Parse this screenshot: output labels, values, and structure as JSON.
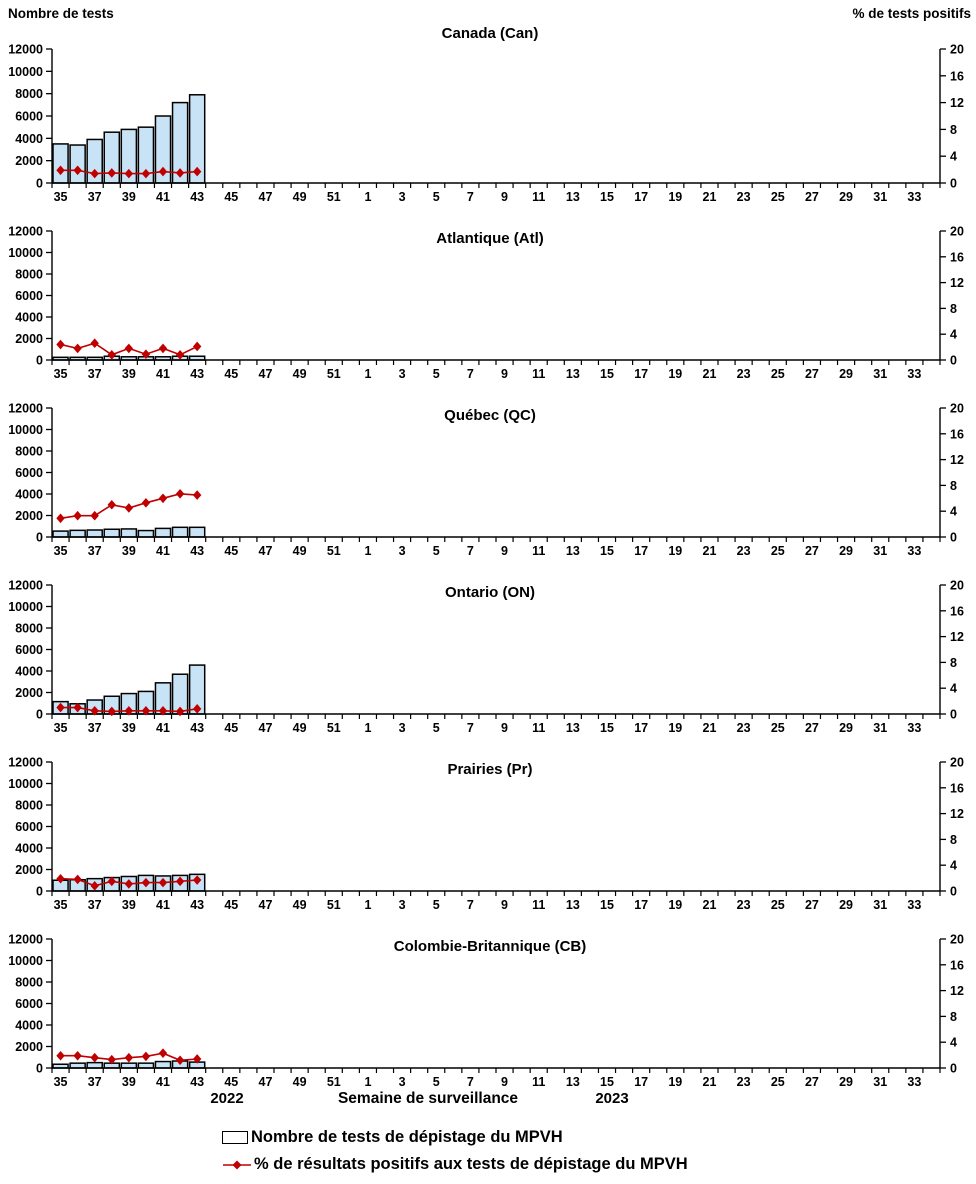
{
  "figure": {
    "left_axis_header": "Nombre de tests",
    "right_axis_header": "% de tests positifs",
    "footer": {
      "year_left": "2022",
      "axis_title": "Semaine de surveillance",
      "year_right": "2023"
    },
    "legend": {
      "bar_label": "Nombre de tests de dépistage du MPVH",
      "line_label": "% de résultats positifs aux tests de dépistage du MPVH"
    },
    "colors": {
      "bar_fill": "#C9E3F6",
      "bar_stroke": "#000000",
      "line": "#C00000",
      "axis": "#000000"
    }
  },
  "chart_data": {
    "type": "bar",
    "subtype": "small-multiples dual-axis bar+line",
    "xlabel": "Semaine de surveillance",
    "x_year_segments": [
      "2022",
      "2023"
    ],
    "x_categories": [
      35,
      36,
      37,
      38,
      39,
      40,
      41,
      42,
      43,
      44,
      45,
      46,
      47,
      48,
      49,
      50,
      51,
      52,
      1,
      2,
      3,
      4,
      5,
      6,
      7,
      8,
      9,
      10,
      11,
      12,
      13,
      14,
      15,
      16,
      17,
      18,
      19,
      20,
      21,
      22,
      23,
      24,
      25,
      26,
      27,
      28,
      29,
      30,
      31,
      32,
      33,
      34
    ],
    "x_tick_labels_shown": [
      35,
      37,
      39,
      41,
      43,
      45,
      47,
      49,
      51,
      1,
      3,
      5,
      7,
      9,
      11,
      13,
      15,
      17,
      19,
      21,
      23,
      25,
      27,
      29,
      31,
      33
    ],
    "left_axis": {
      "label": "Nombre de tests",
      "min": 0,
      "max": 12000,
      "tick_step": 2000,
      "ticks": [
        0,
        2000,
        4000,
        6000,
        8000,
        10000,
        12000
      ]
    },
    "right_axis": {
      "label": "% de tests positifs",
      "min": 0,
      "max": 20,
      "tick_step": 4,
      "ticks": [
        0,
        4,
        8,
        12,
        16,
        20
      ]
    },
    "series_names": {
      "bars": "Nombre de tests de dépistage du MPVH",
      "line": "% de résultats positifs aux tests de dépistage du MPVH"
    },
    "data_weeks": [
      35,
      36,
      37,
      38,
      39,
      40,
      41,
      42,
      43
    ],
    "panels": [
      {
        "title": "Canada (Can)",
        "tests": [
          3500,
          3400,
          3900,
          4550,
          4800,
          5000,
          6000,
          7200,
          7900
        ],
        "pct_positive": [
          1.9,
          1.9,
          1.4,
          1.5,
          1.4,
          1.4,
          1.7,
          1.5,
          1.7
        ]
      },
      {
        "title": "Atlantique (Atl)",
        "tests": [
          250,
          250,
          250,
          350,
          300,
          300,
          300,
          350,
          350
        ],
        "pct_positive": [
          2.4,
          1.8,
          2.6,
          0.8,
          1.8,
          0.9,
          1.8,
          0.8,
          2.1
        ]
      },
      {
        "title": "Québec (QC)",
        "tests": [
          550,
          620,
          650,
          720,
          750,
          600,
          800,
          900,
          900
        ],
        "pct_positive": [
          2.9,
          3.3,
          3.3,
          5.0,
          4.5,
          5.3,
          6.0,
          6.7,
          6.5
        ]
      },
      {
        "title": "Ontario (ON)",
        "tests": [
          1150,
          950,
          1300,
          1650,
          1900,
          2100,
          2900,
          3700,
          4550
        ],
        "pct_positive": [
          1.0,
          1.0,
          0.5,
          0.4,
          0.5,
          0.5,
          0.5,
          0.4,
          0.8
        ]
      },
      {
        "title": "Prairies (Pr)",
        "tests": [
          1000,
          1050,
          1150,
          1250,
          1350,
          1450,
          1400,
          1450,
          1550
        ],
        "pct_positive": [
          1.9,
          1.8,
          0.8,
          1.5,
          1.1,
          1.3,
          1.3,
          1.5,
          1.7
        ]
      },
      {
        "title": "Colombie-Britannique (CB)",
        "tests": [
          350,
          450,
          500,
          450,
          450,
          450,
          600,
          650,
          550
        ],
        "pct_positive": [
          1.9,
          1.9,
          1.6,
          1.3,
          1.6,
          1.8,
          2.3,
          1.2,
          1.4
        ]
      }
    ]
  }
}
